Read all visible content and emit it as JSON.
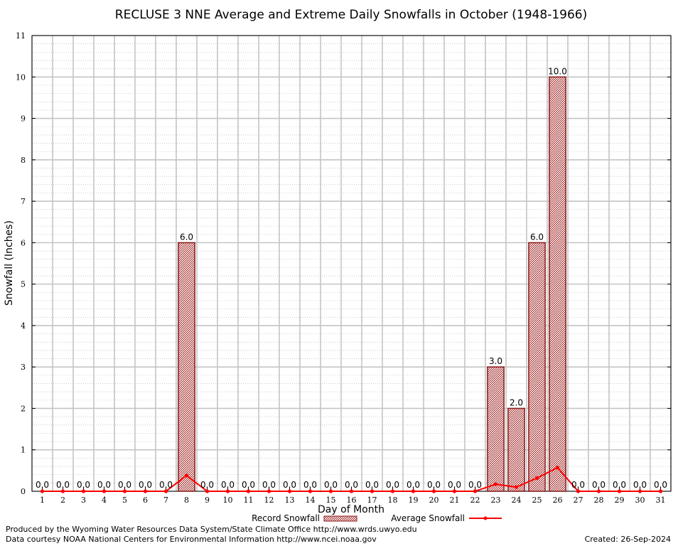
{
  "chart_data": {
    "type": "bar",
    "title": "RECLUSE 3 NNE Average and Extreme Daily Snowfalls in October (1948-1966)",
    "xlabel": "Day of Month",
    "ylabel": "Snowfall (Inches)",
    "ylim": [
      0,
      11
    ],
    "yticks": [
      "0",
      "1",
      "2",
      "3",
      "4",
      "5",
      "6",
      "7",
      "8",
      "9",
      "10",
      "11"
    ],
    "categories": [
      "1",
      "2",
      "3",
      "4",
      "5",
      "6",
      "7",
      "8",
      "9",
      "10",
      "11",
      "12",
      "13",
      "14",
      "15",
      "16",
      "17",
      "18",
      "19",
      "20",
      "21",
      "22",
      "23",
      "24",
      "25",
      "26",
      "27",
      "28",
      "29",
      "30",
      "31"
    ],
    "series": [
      {
        "name": "Record Snowfall",
        "type": "bar",
        "color": "#b22222",
        "values": [
          0,
          0,
          0,
          0,
          0,
          0,
          0,
          6.0,
          0,
          0,
          0,
          0,
          0,
          0,
          0,
          0,
          0,
          0,
          0,
          0,
          0,
          0,
          3.0,
          2.0,
          6.0,
          10.0,
          0,
          0,
          0,
          0,
          0
        ],
        "labels": [
          "0.0",
          "0.0",
          "0.0",
          "0.0",
          "0.0",
          "0.0",
          "0.0",
          "6.0",
          "0.0",
          "0.0",
          "0.0",
          "0.0",
          "0.0",
          "0.0",
          "0.0",
          "0.0",
          "0.0",
          "0.0",
          "0.0",
          "0.0",
          "0.0",
          "0.0",
          "3.0",
          "2.0",
          "6.0",
          "10.0",
          "0.0",
          "0.0",
          "0.0",
          "0.0",
          "0.0"
        ]
      },
      {
        "name": "Average Snowfall",
        "type": "line",
        "color": "#ff0000",
        "values": [
          0,
          0,
          0,
          0,
          0,
          0,
          0,
          0.38,
          0,
          0,
          0,
          0,
          0,
          0,
          0,
          0,
          0,
          0,
          0,
          0,
          0,
          0,
          0.17,
          0.1,
          0.32,
          0.57,
          0,
          0,
          0,
          0,
          0
        ]
      }
    ],
    "grid": true,
    "legend_position": "bottom"
  },
  "footer": {
    "left_line1": "Produced by the Wyoming Water Resources Data System/State Climate Office http://www.wrds.uwyo.edu",
    "left_line2": "Data courtesy NOAA National Centers for Environmental Information http://www.ncei.noaa.gov",
    "created": "Created:  26-Sep-2024"
  }
}
